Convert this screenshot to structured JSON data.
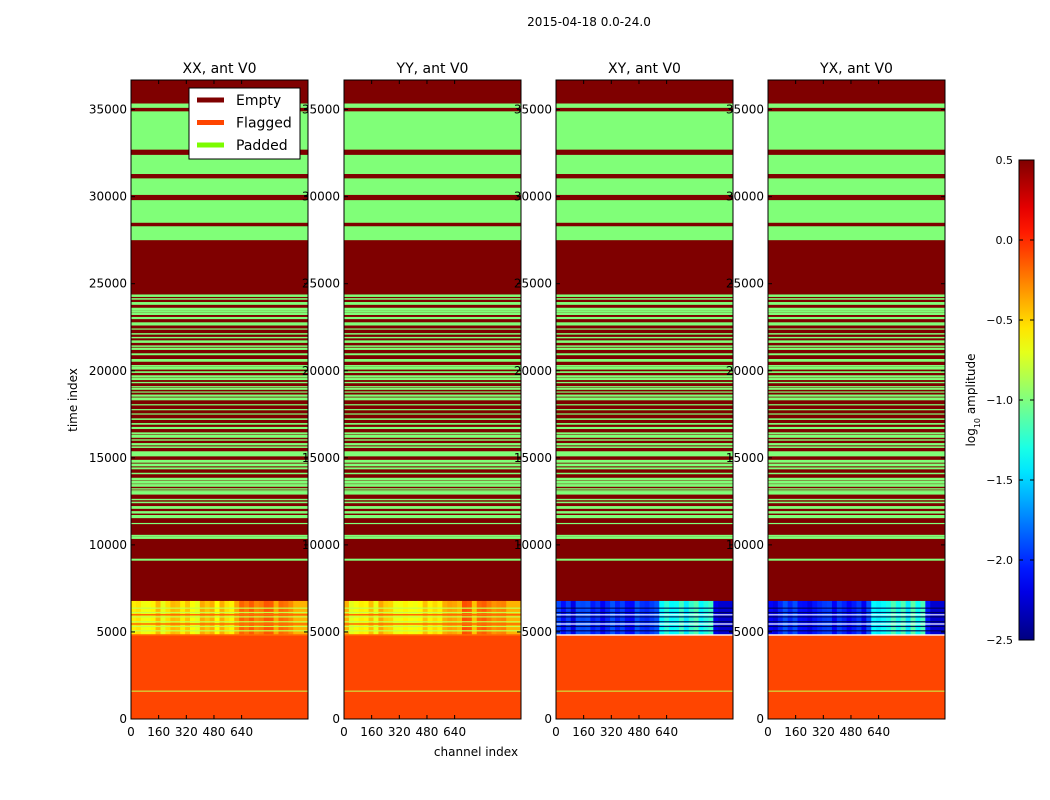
{
  "chart_data": {
    "type": "heatmap",
    "title": "2015-04-18 0.0-24.0",
    "xlabel": "channel index",
    "ylabel": "time index",
    "xlim": [
      0,
      1024
    ],
    "ylim": [
      0,
      36700
    ],
    "xticks": [
      0,
      160,
      320,
      480,
      640
    ],
    "xtick_labels": [
      "0",
      "160",
      "320",
      "480",
      "640"
    ],
    "yticks": [
      0,
      5000,
      10000,
      15000,
      20000,
      25000,
      30000,
      35000
    ],
    "ytick_labels": [
      "0",
      "5000",
      "10000",
      "15000",
      "20000",
      "25000",
      "30000",
      "35000"
    ],
    "legend": {
      "position": "top-right of first panel",
      "entries": [
        {
          "label": "Empty",
          "color": "#7f0000"
        },
        {
          "label": "Flagged",
          "color": "#ff4500"
        },
        {
          "label": "Padded",
          "color": "#7cfc00"
        }
      ]
    },
    "colors": {
      "empty": "#7f0000",
      "flagged": "#ff4500",
      "padded_band": "#80ff78",
      "padded_line": "#c6ff4a"
    },
    "panels": [
      {
        "title": "XX, ant V0",
        "data_level": "high"
      },
      {
        "title": "YY, ant V0",
        "data_level": "high"
      },
      {
        "title": "XY, ant V0",
        "data_level": "low"
      },
      {
        "title": "YX, ant V0",
        "data_level": "low"
      }
    ],
    "rows": {
      "flagged_range": [
        0,
        4850
      ],
      "flagged_thin_line_at": 1600,
      "data_range": [
        4850,
        6780
      ],
      "empty_range": [
        6780,
        27500
      ],
      "padded_lines_in_empty": [
        9150,
        10400,
        10520
      ],
      "padded_dense_range": [
        11200,
        24600
      ],
      "padded_bands_top": [
        [
          27500,
          28300
        ],
        [
          28500,
          29800
        ],
        [
          30100,
          31050
        ],
        [
          31300,
          32400
        ],
        [
          32700,
          34900
        ],
        [
          35100,
          35350
        ]
      ],
      "empty_top_range": [
        35350,
        36700
      ]
    },
    "colorbar": {
      "label": "log10 amplitude",
      "range": [
        -2.5,
        0.5
      ],
      "ticks": [
        -2.5,
        -2.0,
        -1.5,
        -1.0,
        -0.5,
        0.0,
        0.5
      ],
      "tick_labels": [
        "−2.5",
        "−2.0",
        "−1.5",
        "−1.0",
        "−0.5",
        "0.0",
        "0.5"
      ],
      "colormap": "jet"
    }
  }
}
